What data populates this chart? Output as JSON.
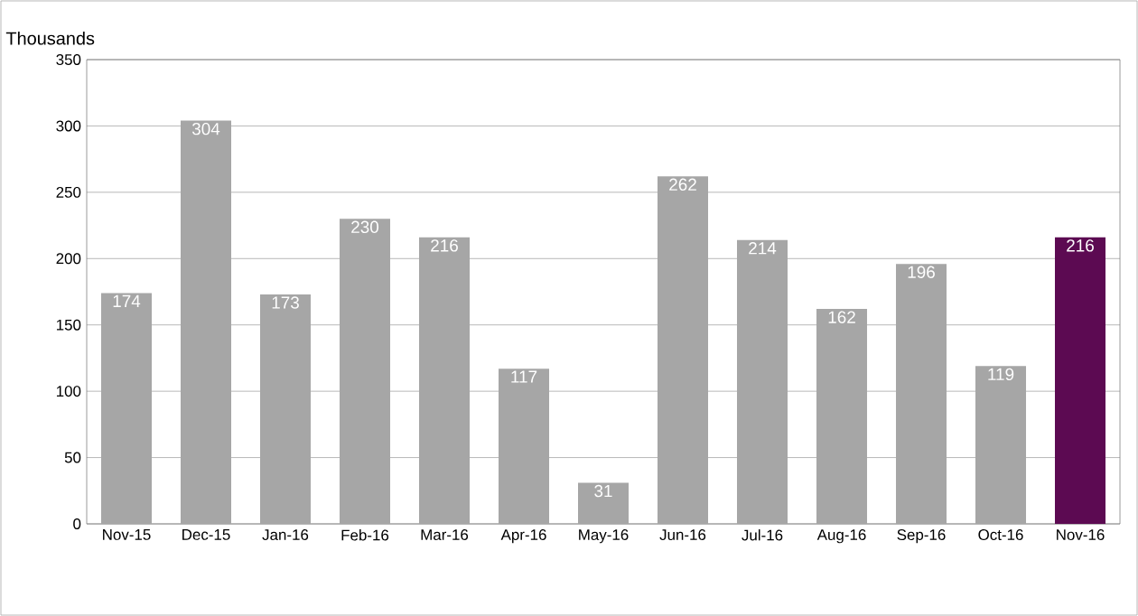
{
  "chart_data": {
    "type": "bar",
    "ylabel": "Thousands",
    "categories": [
      "Nov-15",
      "Dec-15",
      "Jan-16",
      "Feb-16",
      "Mar-16",
      "Apr-16",
      "May-16",
      "Jun-16",
      "Jul-16",
      "Aug-16",
      "Sep-16",
      "Oct-16",
      "Nov-16"
    ],
    "values": [
      174,
      304,
      173,
      230,
      216,
      117,
      31,
      262,
      214,
      162,
      196,
      119,
      216
    ],
    "colors": [
      "#a6a6a6",
      "#a6a6a6",
      "#a6a6a6",
      "#a6a6a6",
      "#a6a6a6",
      "#a6a6a6",
      "#a6a6a6",
      "#a6a6a6",
      "#a6a6a6",
      "#a6a6a6",
      "#a6a6a6",
      "#a6a6a6",
      "#5c0a52"
    ],
    "ylim": [
      0,
      350
    ],
    "yticks": [
      0,
      50,
      100,
      150,
      200,
      250,
      300,
      350
    ],
    "grid": "y",
    "data_labels": true
  }
}
